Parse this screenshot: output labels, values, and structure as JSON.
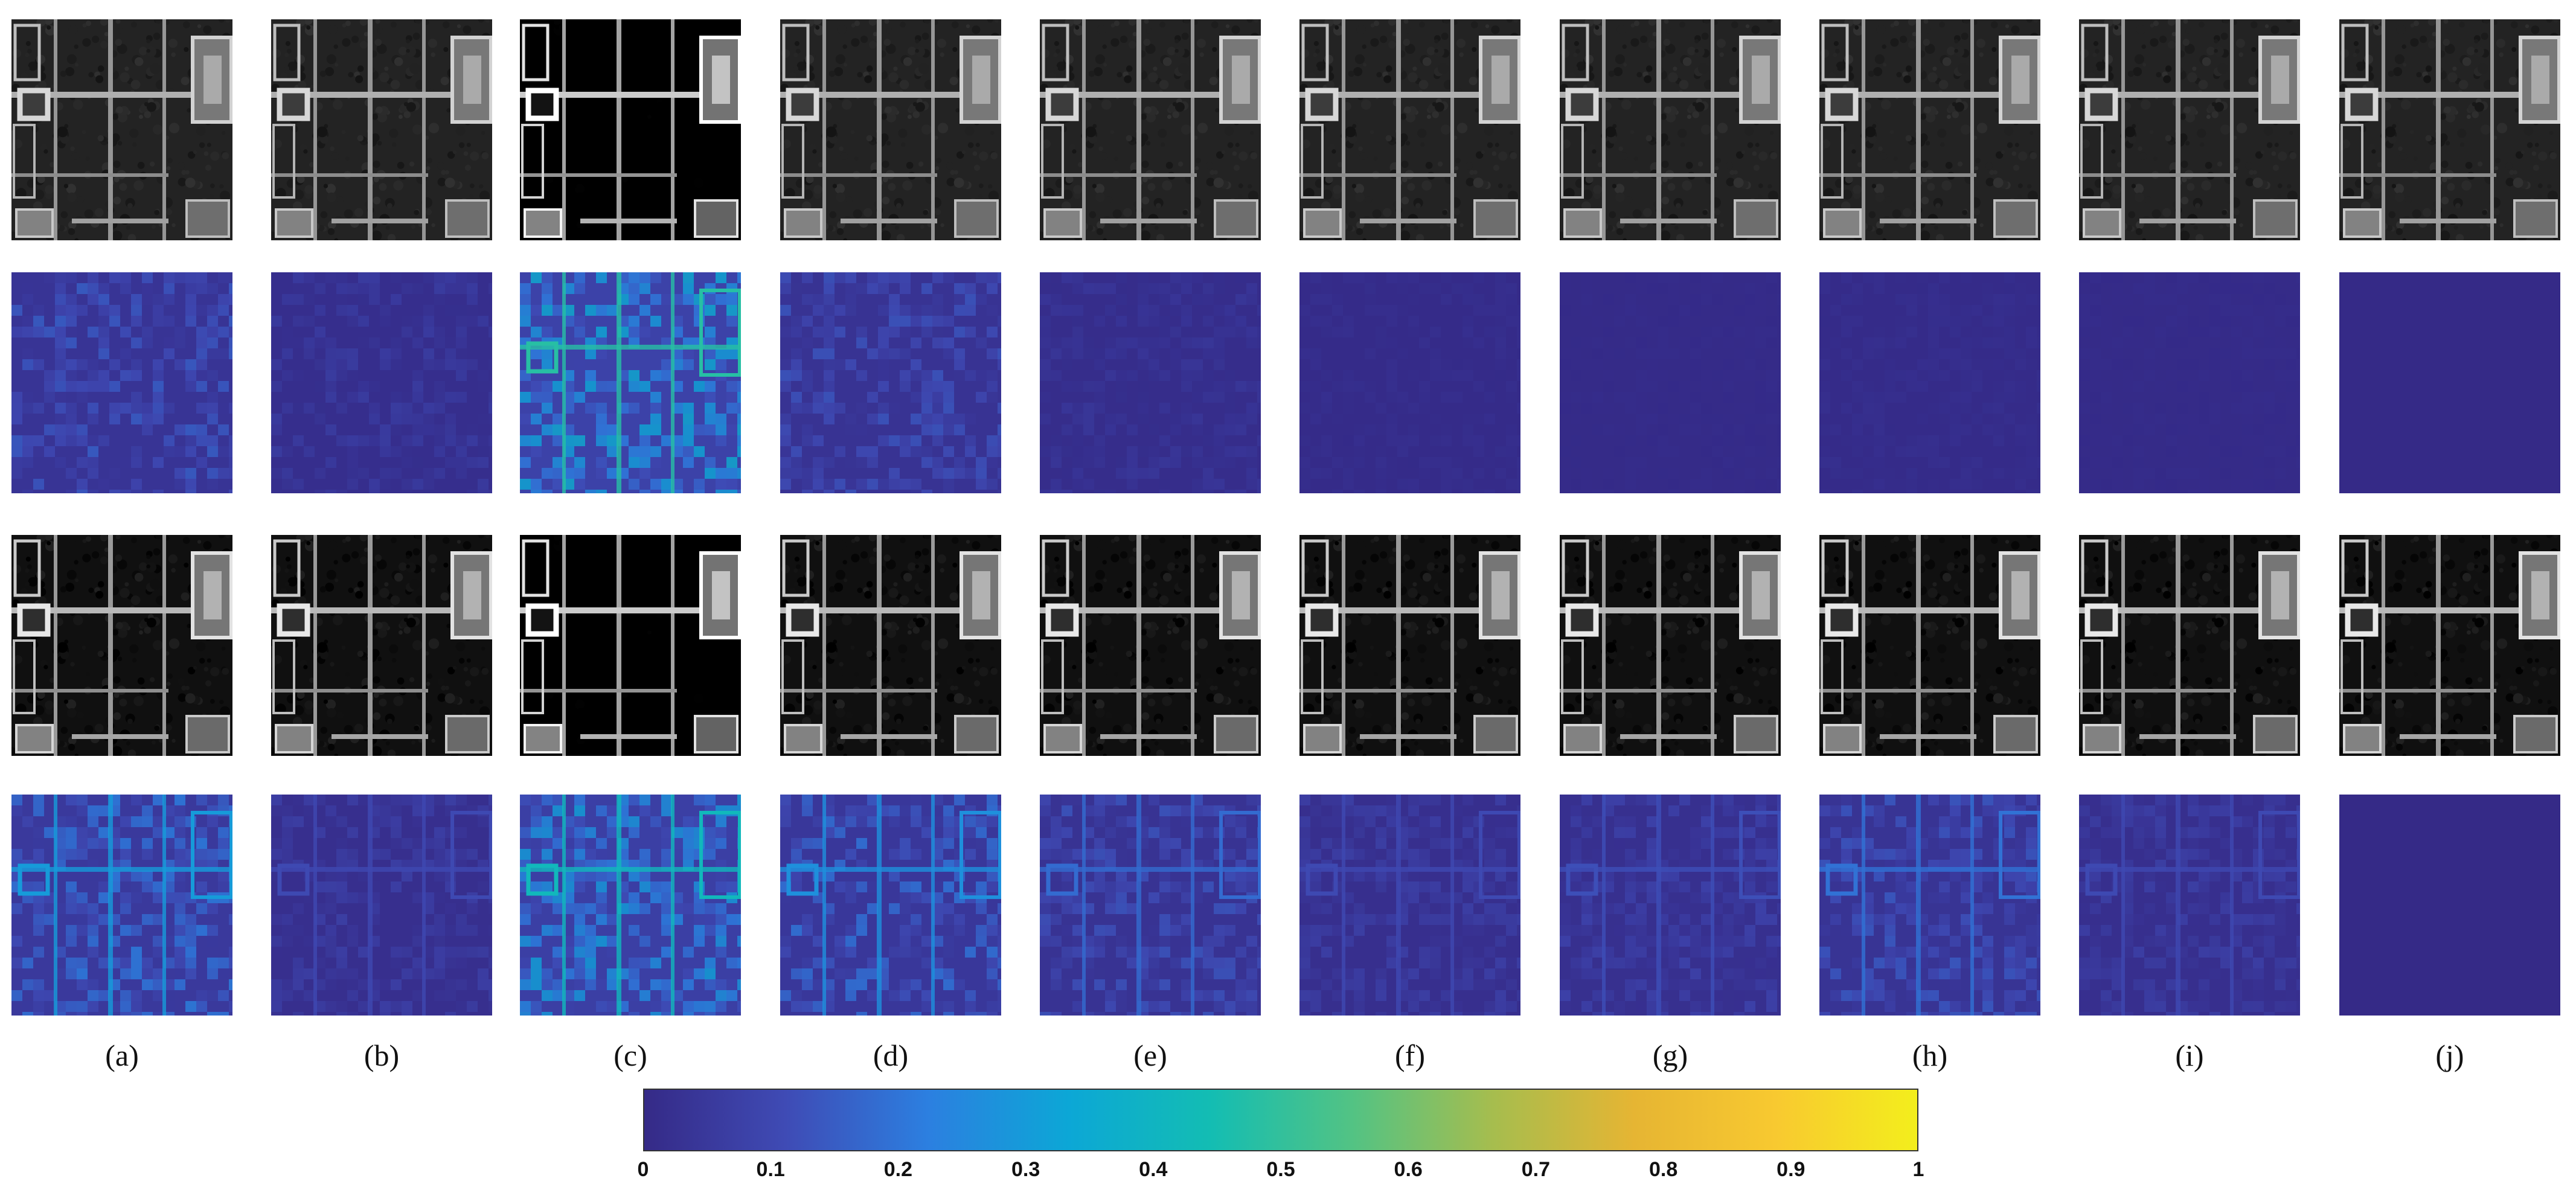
{
  "figure": {
    "columns": [
      {
        "caption": "(a)",
        "error_level_row2": 0.14,
        "error_level_row4": 0.2
      },
      {
        "caption": "(b)",
        "error_level_row2": 0.06,
        "error_level_row4": 0.07
      },
      {
        "caption": "(c)",
        "error_level_row2": 0.32,
        "error_level_row4": 0.28
      },
      {
        "caption": "(d)",
        "error_level_row2": 0.12,
        "error_level_row4": 0.18
      },
      {
        "caption": "(e)",
        "error_level_row2": 0.04,
        "error_level_row4": 0.12
      },
      {
        "caption": "(f)",
        "error_level_row2": 0.02,
        "error_level_row4": 0.07
      },
      {
        "caption": "(g)",
        "error_level_row2": 0.01,
        "error_level_row4": 0.08
      },
      {
        "caption": "(h)",
        "error_level_row2": 0.02,
        "error_level_row4": 0.13
      },
      {
        "caption": "(i)",
        "error_level_row2": 0.01,
        "error_level_row4": 0.07
      },
      {
        "caption": "(j)",
        "error_level_row2": 0.0,
        "error_level_row4": 0.0
      }
    ],
    "rows": [
      "band-image",
      "error-map",
      "band-image",
      "error-map"
    ],
    "colorbar": {
      "colormap": "parula",
      "colors": [
        "#352a87",
        "#3f4bb5",
        "#2c7fe0",
        "#0ca7d6",
        "#13bdb3",
        "#52c384",
        "#a6bd4e",
        "#e6b533",
        "#f8c930",
        "#f3ee1c"
      ],
      "ticks": [
        "0",
        "0.1",
        "0.2",
        "0.3",
        "0.4",
        "0.5",
        "0.6",
        "0.7",
        "0.8",
        "0.9",
        "1"
      ]
    }
  }
}
